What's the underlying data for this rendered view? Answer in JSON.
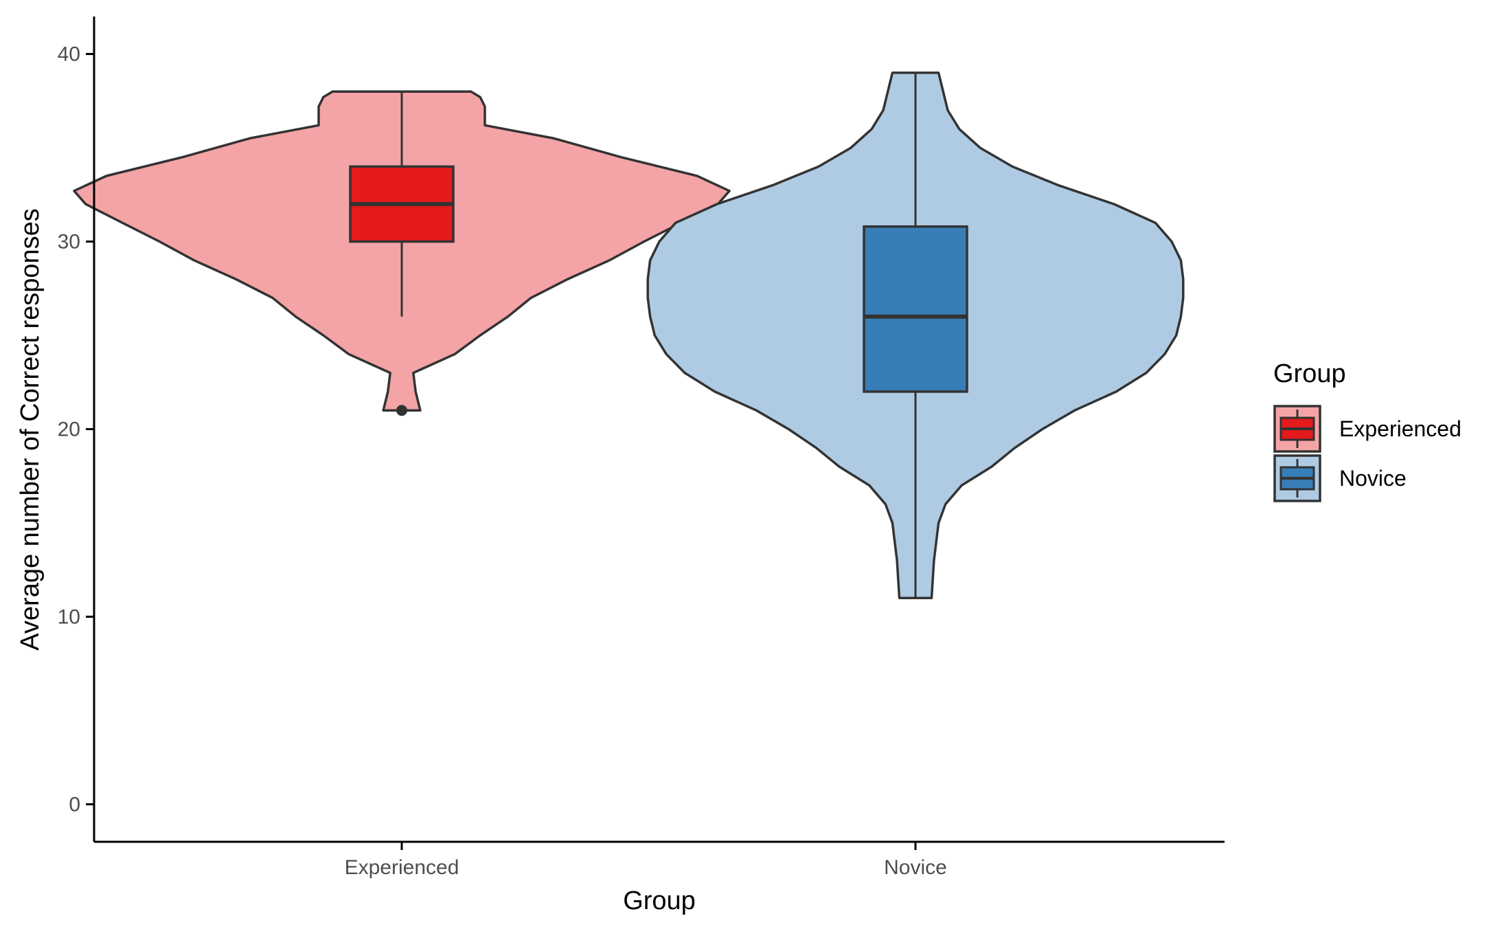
{
  "chart_data": {
    "type": "violin",
    "title": "",
    "xlabel": "Group",
    "ylabel": "Average number of Correct responses",
    "ylim": [
      -2,
      42
    ],
    "yticks": [
      0,
      10,
      20,
      30,
      40
    ],
    "categories": [
      "Experienced",
      "Novice"
    ],
    "grid": false,
    "legend": {
      "title": "Group",
      "position": "right",
      "entries": [
        "Experienced",
        "Novice"
      ]
    },
    "series": [
      {
        "name": "Experienced",
        "violin_color": "#F4A4A6",
        "box_color": "#E41A1C",
        "density": [
          [
            21,
            0.08
          ],
          [
            22,
            0.06
          ],
          [
            23,
            0.05
          ],
          [
            24,
            0.23
          ],
          [
            25,
            0.34
          ],
          [
            26,
            0.46
          ],
          [
            27,
            0.56
          ],
          [
            28,
            0.72
          ],
          [
            29,
            0.9
          ],
          [
            30,
            1.05
          ],
          [
            31,
            1.21
          ],
          [
            32,
            1.37
          ],
          [
            32.7,
            1.42
          ],
          [
            33.5,
            1.28
          ],
          [
            34.5,
            0.95
          ],
          [
            35.5,
            0.66
          ],
          [
            36.2,
            0.36
          ],
          [
            37.2,
            0.36
          ],
          [
            37.7,
            0.34
          ],
          [
            38,
            0.3
          ]
        ],
        "box": {
          "min": 26,
          "q1": 30,
          "median": 32,
          "q3": 34,
          "max": 38
        },
        "outliers": [
          21
        ]
      },
      {
        "name": "Novice",
        "violin_color": "#AFCBE4",
        "box_color": "#377EB8",
        "density": [
          [
            11,
            0.07
          ],
          [
            13,
            0.08
          ],
          [
            15,
            0.1
          ],
          [
            16,
            0.13
          ],
          [
            17,
            0.2
          ],
          [
            18,
            0.33
          ],
          [
            19,
            0.43
          ],
          [
            20,
            0.55
          ],
          [
            21,
            0.69
          ],
          [
            22,
            0.87
          ],
          [
            23,
            1.0
          ],
          [
            24,
            1.08
          ],
          [
            25,
            1.13
          ],
          [
            26,
            1.15
          ],
          [
            27,
            1.16
          ],
          [
            28,
            1.16
          ],
          [
            29,
            1.15
          ],
          [
            30,
            1.11
          ],
          [
            31,
            1.04
          ],
          [
            32,
            0.86
          ],
          [
            33,
            0.62
          ],
          [
            34,
            0.42
          ],
          [
            35,
            0.28
          ],
          [
            36,
            0.19
          ],
          [
            37,
            0.14
          ],
          [
            38,
            0.12
          ],
          [
            39,
            0.1
          ]
        ],
        "box": {
          "min": 11,
          "q1": 22,
          "median": 26,
          "q3": 30.8,
          "max": 39
        },
        "outliers": []
      }
    ]
  }
}
